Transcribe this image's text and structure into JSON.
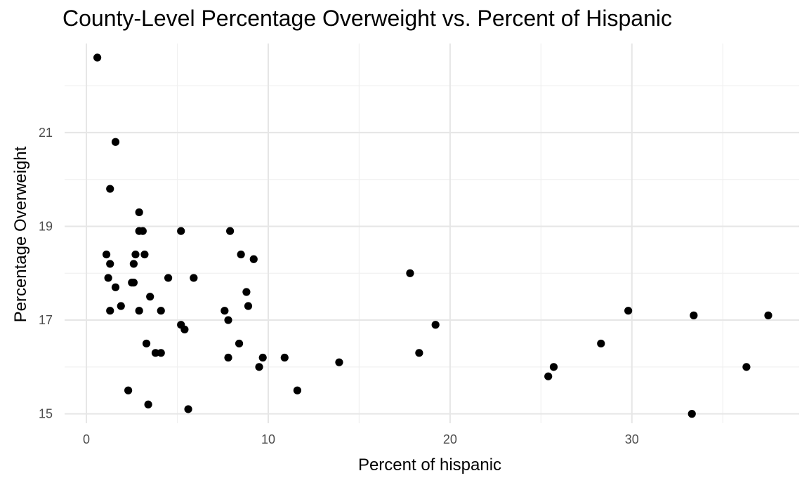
{
  "chart_data": {
    "type": "scatter",
    "title": "County-Level Percentage Overweight vs. Percent of Hispanic",
    "xlabel": "Percent of hispanic",
    "ylabel": "Percentage Overweight",
    "xlim": [
      -1.2,
      39.2
    ],
    "ylim": [
      14.8,
      22.9
    ],
    "x_ticks": [
      0,
      10,
      20,
      30
    ],
    "x_tick_labels": [
      "0",
      "10",
      "20",
      "30"
    ],
    "y_ticks": [
      15,
      17,
      19,
      21
    ],
    "y_tick_labels": [
      "15",
      "17",
      "19",
      "21"
    ],
    "x_minor_ticks": [
      5,
      15,
      25,
      35
    ],
    "y_minor_ticks": [
      16,
      18,
      20,
      22
    ],
    "grid": true,
    "legend": "none",
    "point_color": "#000000",
    "x": [
      0.6,
      1.6,
      1.3,
      2.9,
      2.9,
      3.1,
      1.1,
      1.3,
      2.6,
      2.7,
      3.2,
      1.2,
      1.6,
      2.5,
      2.6,
      1.3,
      1.9,
      2.9,
      3.5,
      4.1,
      4.5,
      3.3,
      3.8,
      4.1,
      2.3,
      3.4,
      5.2,
      5.9,
      5.2,
      5.4,
      5.6,
      7.9,
      8.5,
      9.2,
      8.8,
      8.9,
      7.6,
      7.8,
      8.4,
      7.8,
      9.7,
      9.5,
      10.9,
      11.6,
      13.9,
      17.8,
      18.3,
      19.2,
      25.4,
      25.7,
      28.3,
      29.8,
      33.4,
      33.3,
      36.3,
      37.5
    ],
    "y": [
      22.6,
      20.8,
      19.8,
      19.3,
      18.9,
      18.9,
      18.4,
      18.2,
      18.2,
      18.4,
      18.4,
      17.9,
      17.7,
      17.8,
      17.8,
      17.2,
      17.3,
      17.2,
      17.5,
      17.2,
      17.9,
      16.5,
      16.3,
      16.3,
      15.5,
      15.2,
      18.9,
      17.9,
      16.9,
      16.8,
      15.1,
      18.9,
      18.4,
      18.3,
      17.6,
      17.3,
      17.2,
      17.0,
      16.5,
      16.2,
      16.2,
      16.0,
      16.2,
      15.5,
      16.1,
      18.0,
      16.3,
      16.9,
      15.8,
      16.0,
      16.5,
      17.2,
      17.1,
      15.0,
      16.0,
      17.1
    ]
  }
}
